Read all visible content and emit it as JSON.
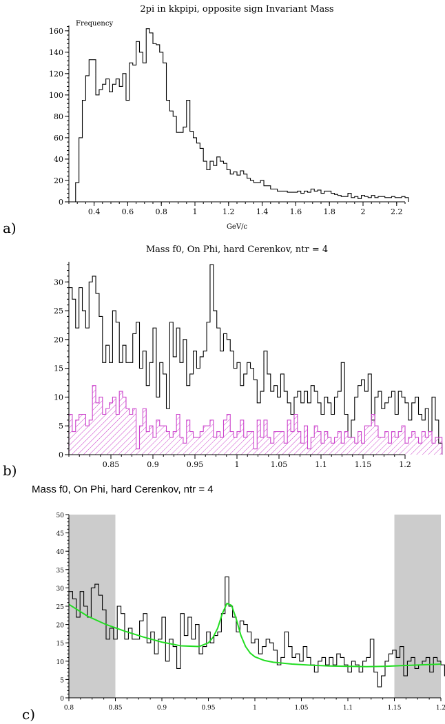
{
  "chart_data": [
    {
      "panel_label": "a)",
      "type": "histogram",
      "title": "2pi in kkpipi, opposite sign Invariant Mass",
      "xlabel": "GeV/c",
      "ylabel": "Frequency",
      "xlim": [
        0.25,
        2.25
      ],
      "ylim": [
        0,
        165
      ],
      "xticks": [
        0.4,
        0.6,
        0.8,
        1,
        1.2,
        1.4,
        1.6,
        1.8,
        2,
        2.2
      ],
      "xtick_labels": [
        "0.4",
        "0.6",
        "0.8",
        "1",
        "1.2",
        "1.4",
        "1.6",
        "1.8",
        "2",
        "2.2"
      ],
      "yticks": [
        0,
        20,
        40,
        60,
        80,
        100,
        120,
        140,
        160
      ],
      "ytick_labels": [
        "0",
        "20",
        "40",
        "60",
        "80",
        "100",
        "120",
        "140",
        "160"
      ],
      "bin_start": 0.27,
      "bin_width": 0.02,
      "series": [
        {
          "values": [
            0,
            18,
            60,
            95,
            118,
            133,
            133,
            100,
            105,
            110,
            115,
            103,
            110,
            115,
            108,
            120,
            95,
            130,
            128,
            150,
            140,
            130,
            162,
            158,
            148,
            147,
            140,
            130,
            95,
            85,
            80,
            65,
            65,
            70,
            95,
            66,
            60,
            55,
            50,
            38,
            30,
            38,
            34,
            42,
            38,
            36,
            30,
            26,
            28,
            25,
            29,
            26,
            22,
            20,
            18,
            18,
            20,
            15,
            15,
            12,
            12,
            10,
            10,
            10,
            9,
            9,
            9,
            10,
            8,
            10,
            9,
            12,
            10,
            11,
            8,
            10,
            10,
            8,
            7,
            6,
            5,
            5,
            8,
            4,
            5,
            3,
            6,
            5,
            4,
            6,
            4,
            5,
            5,
            4,
            4,
            5,
            4,
            4,
            5,
            4
          ],
          "color": "#000000"
        }
      ]
    },
    {
      "panel_label": "b)",
      "type": "histogram",
      "title": "Mass f0, On Phi, hard Cerenkov, ntr = 4",
      "xlim": [
        0.8,
        1.2
      ],
      "ylim": [
        0,
        33.5
      ],
      "xticks": [
        0.85,
        0.9,
        0.95,
        1,
        1.05,
        1.1,
        1.15,
        1.2
      ],
      "xtick_labels": [
        "0.85",
        "0.9",
        "0.95",
        "1",
        "1.05",
        "1.1",
        "1.15",
        "1.2"
      ],
      "yticks": [
        0,
        5,
        10,
        15,
        20,
        25,
        30
      ],
      "ytick_labels": [
        "0",
        "5",
        "10",
        "15",
        "20",
        "25",
        "30"
      ],
      "bin_start": 0.8,
      "bin_width": 0.004,
      "series": [
        {
          "values": [
            29,
            27,
            22,
            29,
            25,
            22,
            30,
            31,
            28,
            24,
            16,
            19,
            16,
            25,
            23,
            16,
            19,
            16,
            16,
            21,
            23,
            15,
            18,
            12,
            16,
            22,
            10,
            16,
            14,
            8,
            23,
            17,
            22,
            16,
            20,
            12,
            14,
            18,
            15,
            17,
            18,
            23,
            33,
            25,
            22,
            18,
            21,
            20,
            18,
            15,
            16,
            12,
            14,
            16,
            15,
            13,
            9,
            11,
            18,
            14,
            11,
            12,
            10,
            14,
            11,
            9,
            7,
            10,
            11,
            9,
            11,
            9,
            12,
            11,
            9,
            7,
            10,
            9,
            7,
            10,
            11,
            16,
            7,
            3,
            6,
            10,
            12,
            13,
            11,
            14,
            6,
            10,
            11,
            8,
            9,
            10,
            11,
            7,
            11,
            10,
            9,
            6,
            9,
            10,
            7,
            6,
            8,
            4,
            10,
            6,
            2
          ],
          "color": "#000000"
        },
        {
          "values": [
            7,
            4,
            6,
            7,
            7,
            5,
            6,
            12,
            9,
            10,
            7,
            8,
            9,
            10,
            7,
            11,
            10,
            8,
            7,
            8,
            1,
            5,
            8,
            4,
            5,
            3,
            6,
            5,
            5,
            4,
            3,
            4,
            7,
            3,
            2,
            6,
            4,
            3,
            3,
            4,
            5,
            5,
            6,
            3,
            4,
            3,
            6,
            7,
            4,
            3,
            4,
            6,
            3,
            4,
            4,
            1,
            6,
            3,
            6,
            3,
            2,
            4,
            4,
            4,
            2,
            6,
            4,
            7,
            4,
            2,
            5,
            1,
            3,
            5,
            4,
            2,
            4,
            3,
            2,
            3,
            4,
            2,
            4,
            3,
            3,
            2,
            4,
            2,
            5,
            5,
            7,
            5,
            3,
            3,
            4,
            2,
            4,
            3,
            4,
            5,
            2,
            3,
            4,
            3,
            2,
            4,
            3,
            4,
            2,
            3,
            3
          ],
          "color": "#cc44cc",
          "fill": "hatched"
        }
      ]
    },
    {
      "panel_label": "c)",
      "type": "histogram",
      "title": "Mass f0, On Phi, hard Cerenkov, ntr = 4",
      "xlim": [
        0.8,
        1.2
      ],
      "ylim": [
        0,
        50
      ],
      "xticks": [
        0.8,
        0.85,
        0.9,
        0.95,
        1,
        1.05,
        1.1,
        1.15,
        1.2
      ],
      "xtick_labels": [
        "0.8",
        "0.85",
        "0.9",
        "0.95",
        "1",
        "1.05",
        "1.1",
        "1.15",
        "1.2"
      ],
      "yticks": [
        0,
        5,
        10,
        15,
        20,
        25,
        30,
        35,
        40,
        45,
        50
      ],
      "ytick_labels": [
        "0",
        "5",
        "10",
        "15",
        "20",
        "25",
        "30",
        "35",
        "40",
        "45",
        "50"
      ],
      "shaded_regions": [
        [
          0.8,
          0.85
        ],
        [
          1.15,
          1.2
        ]
      ],
      "bin_start": 0.8,
      "bin_width": 0.004,
      "series": [
        {
          "values": [
            29,
            27,
            22,
            29,
            25,
            22,
            30,
            31,
            28,
            24,
            16,
            19,
            16,
            25,
            23,
            16,
            19,
            16,
            16,
            21,
            23,
            15,
            18,
            12,
            16,
            22,
            10,
            16,
            14,
            8,
            23,
            17,
            22,
            16,
            20,
            12,
            14,
            18,
            15,
            17,
            18,
            23,
            33,
            25,
            22,
            18,
            21,
            20,
            18,
            15,
            16,
            12,
            14,
            16,
            15,
            13,
            9,
            11,
            18,
            14,
            11,
            12,
            10,
            14,
            11,
            9,
            7,
            10,
            11,
            9,
            11,
            9,
            12,
            11,
            9,
            7,
            10,
            9,
            7,
            10,
            11,
            16,
            7,
            3,
            6,
            10,
            12,
            13,
            11,
            14,
            6,
            10,
            11,
            8,
            9,
            10,
            11,
            7,
            11,
            10,
            9,
            6,
            9,
            10,
            7,
            6,
            8,
            4,
            10,
            6,
            2
          ],
          "color": "#000000"
        }
      ],
      "fit_curve": {
        "color": "#22dd22",
        "x": [
          0.8,
          0.82,
          0.84,
          0.86,
          0.88,
          0.9,
          0.92,
          0.94,
          0.95,
          0.955,
          0.96,
          0.965,
          0.97,
          0.975,
          0.98,
          0.985,
          0.99,
          0.995,
          1.0,
          1.01,
          1.02,
          1.04,
          1.06,
          1.08,
          1.1,
          1.12,
          1.14,
          1.16,
          1.18,
          1.2
        ],
        "y": [
          25.5,
          22.3,
          20,
          18.2,
          16.6,
          15.2,
          14.2,
          14,
          15,
          16.5,
          19,
          23,
          25.8,
          25.2,
          21.5,
          17,
          14,
          12.2,
          11.2,
          10.2,
          9.7,
          9.2,
          8.9,
          8.7,
          8.6,
          8.5,
          8.6,
          8.8,
          9,
          9.2
        ]
      }
    }
  ]
}
